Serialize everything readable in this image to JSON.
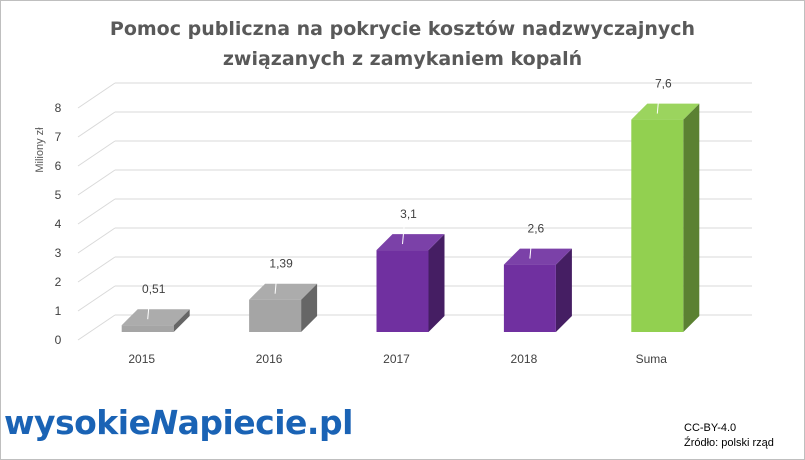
{
  "chart_data": {
    "type": "bar",
    "title_lines": [
      "Pomoc publiczna  na pokrycie kosztów  nadzwyczajnych",
      "związanych  z zamykaniem  kopalń"
    ],
    "ylabel": "Miliony zł",
    "xlabel": "",
    "ylim": [
      0,
      8
    ],
    "yticks": [
      "0",
      "1",
      "2",
      "3",
      "4",
      "5",
      "6",
      "7",
      "8"
    ],
    "categories": [
      "2015",
      "2016",
      "2017",
      "2018",
      "Suma"
    ],
    "values": [
      0.51,
      1.39,
      3.1,
      2.6,
      7.6
    ],
    "data_labels": [
      "0,51",
      "1,39",
      "3,1",
      "2,6",
      "7,6"
    ],
    "colors": {
      "2015": "#a5a5a5",
      "2016": "#a5a5a5",
      "2017": "#7030a0",
      "2018": "#7030a0",
      "Suma": "#92d050"
    },
    "grid": true,
    "legend": "none"
  },
  "branding": {
    "logo_left": "wysokie",
    "logo_mark": "N",
    "logo_right": "apiecie.pl"
  },
  "credits": {
    "license": "CC-BY-4.0",
    "source": "Źródło: polski rząd"
  }
}
